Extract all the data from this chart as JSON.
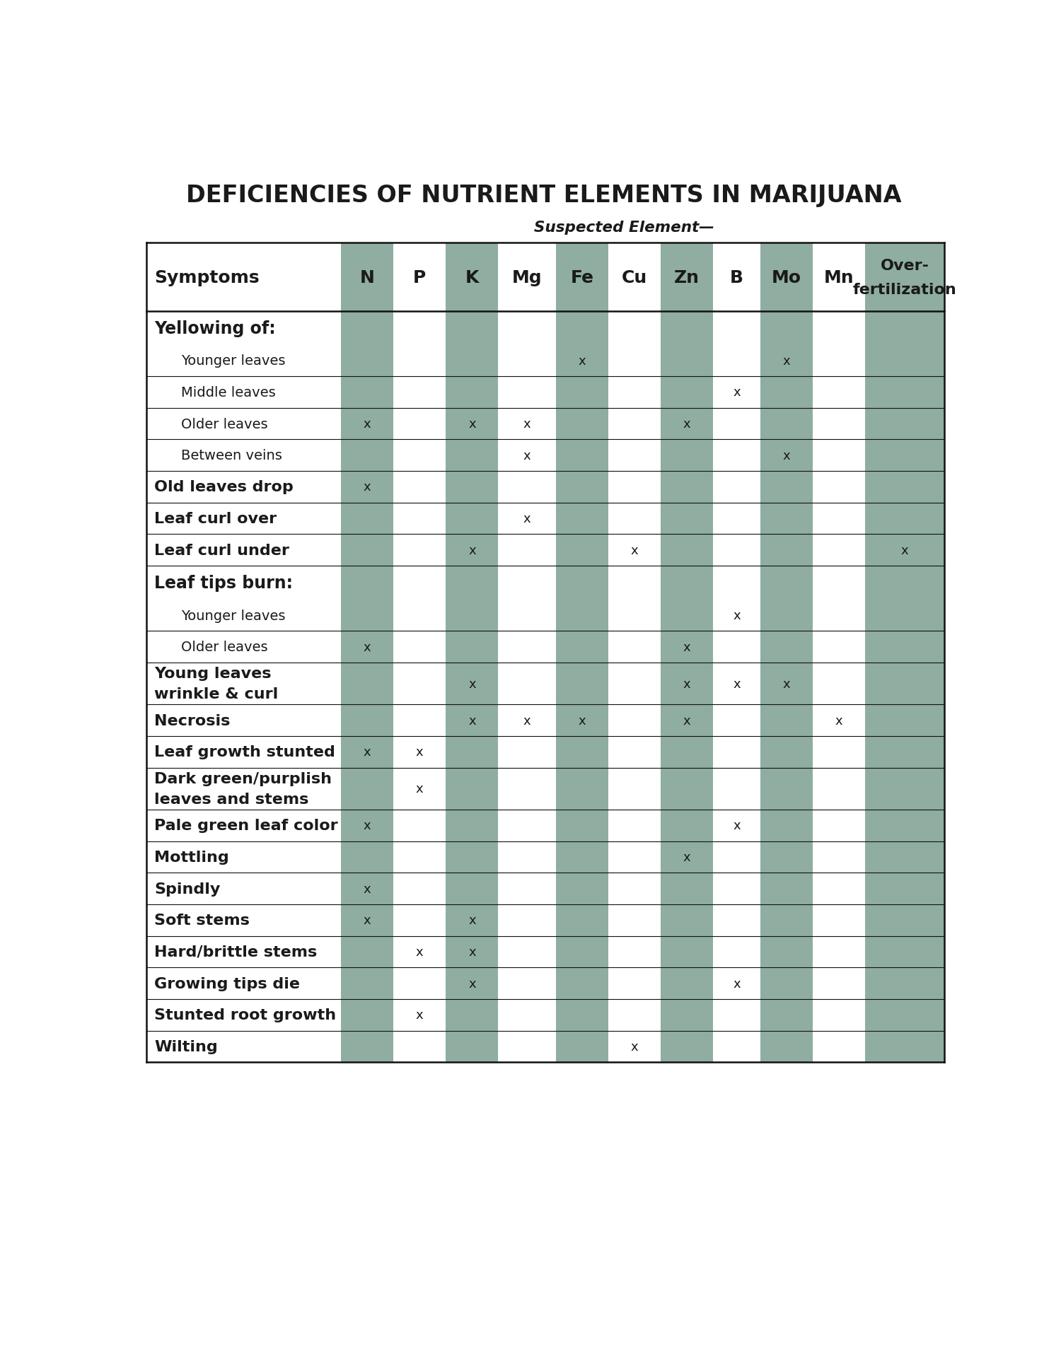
{
  "title": "DEFICIENCIES OF NUTRIENT ELEMENTS IN MARIJUANA",
  "subtitle": "Suspected Element—",
  "bg_color": "#ffffff",
  "stripe_color": "#8fada0",
  "text_color": "#1a1a1a",
  "columns": [
    "N",
    "P",
    "K",
    "Mg",
    "Fe",
    "Cu",
    "Zn",
    "B",
    "Mo",
    "Mn",
    "Over-\nfertilization"
  ],
  "striped_cols": [
    0,
    2,
    4,
    6,
    8,
    10
  ],
  "col_widths_rel": [
    1,
    1,
    1,
    1.1,
    1,
    1,
    1,
    0.9,
    1,
    1,
    1.5
  ],
  "rows": [
    {
      "label": "Yellowing of:",
      "indent": 0,
      "header": true,
      "line_below": false,
      "marks": [
        0,
        0,
        0,
        0,
        0,
        0,
        0,
        0,
        0,
        0,
        0
      ]
    },
    {
      "label": "Younger leaves",
      "indent": 1,
      "header": false,
      "line_below": true,
      "marks": [
        0,
        0,
        0,
        0,
        1,
        0,
        0,
        0,
        1,
        0,
        0
      ]
    },
    {
      "label": "Middle leaves",
      "indent": 1,
      "header": false,
      "line_below": true,
      "marks": [
        0,
        0,
        0,
        0,
        0,
        0,
        0,
        1,
        0,
        0,
        0
      ]
    },
    {
      "label": "Older leaves",
      "indent": 1,
      "header": false,
      "line_below": true,
      "marks": [
        1,
        0,
        1,
        1,
        0,
        0,
        1,
        0,
        0,
        0,
        0
      ]
    },
    {
      "label": "Between veins",
      "indent": 1,
      "header": false,
      "line_below": true,
      "marks": [
        0,
        0,
        0,
        1,
        0,
        0,
        0,
        0,
        1,
        0,
        0
      ]
    },
    {
      "label": "Old leaves drop",
      "indent": 0,
      "header": false,
      "line_below": true,
      "marks": [
        1,
        0,
        0,
        0,
        0,
        0,
        0,
        0,
        0,
        0,
        0
      ]
    },
    {
      "label": "Leaf curl over",
      "indent": 0,
      "header": false,
      "line_below": true,
      "marks": [
        0,
        0,
        0,
        1,
        0,
        0,
        0,
        0,
        0,
        0,
        0
      ]
    },
    {
      "label": "Leaf curl under",
      "indent": 0,
      "header": false,
      "line_below": true,
      "marks": [
        0,
        0,
        1,
        0,
        0,
        1,
        0,
        0,
        0,
        0,
        1
      ]
    },
    {
      "label": "Leaf tips burn:",
      "indent": 0,
      "header": true,
      "line_below": false,
      "marks": [
        0,
        0,
        0,
        0,
        0,
        0,
        0,
        0,
        0,
        0,
        0
      ]
    },
    {
      "label": "Younger leaves",
      "indent": 1,
      "header": false,
      "line_below": true,
      "marks": [
        0,
        0,
        0,
        0,
        0,
        0,
        0,
        1,
        0,
        0,
        0
      ]
    },
    {
      "label": "Older leaves",
      "indent": 1,
      "header": false,
      "line_below": true,
      "marks": [
        1,
        0,
        0,
        0,
        0,
        0,
        1,
        0,
        0,
        0,
        0
      ]
    },
    {
      "label": "Young leaves\nwrinkle & curl",
      "indent": 0,
      "header": false,
      "line_below": true,
      "marks": [
        0,
        0,
        1,
        0,
        0,
        0,
        1,
        1,
        1,
        0,
        0
      ]
    },
    {
      "label": "Necrosis",
      "indent": 0,
      "header": false,
      "line_below": true,
      "marks": [
        0,
        0,
        1,
        1,
        1,
        0,
        1,
        0,
        0,
        1,
        0
      ]
    },
    {
      "label": "Leaf growth stunted",
      "indent": 0,
      "header": false,
      "line_below": true,
      "marks": [
        1,
        1,
        0,
        0,
        0,
        0,
        0,
        0,
        0,
        0,
        0
      ]
    },
    {
      "label": "Dark green/purplish\nleaves and stems",
      "indent": 0,
      "header": false,
      "line_below": true,
      "marks": [
        0,
        1,
        0,
        0,
        0,
        0,
        0,
        0,
        0,
        0,
        0
      ]
    },
    {
      "label": "Pale green leaf color",
      "indent": 0,
      "header": false,
      "line_below": true,
      "marks": [
        1,
        0,
        0,
        0,
        0,
        0,
        0,
        1,
        0,
        0,
        0
      ]
    },
    {
      "label": "Mottling",
      "indent": 0,
      "header": false,
      "line_below": true,
      "marks": [
        0,
        0,
        0,
        0,
        0,
        0,
        1,
        0,
        0,
        0,
        0
      ]
    },
    {
      "label": "Spindly",
      "indent": 0,
      "header": false,
      "line_below": true,
      "marks": [
        1,
        0,
        0,
        0,
        0,
        0,
        0,
        0,
        0,
        0,
        0
      ]
    },
    {
      "label": "Soft stems",
      "indent": 0,
      "header": false,
      "line_below": true,
      "marks": [
        1,
        0,
        1,
        0,
        0,
        0,
        0,
        0,
        0,
        0,
        0
      ]
    },
    {
      "label": "Hard/brittle stems",
      "indent": 0,
      "header": false,
      "line_below": true,
      "marks": [
        0,
        1,
        1,
        0,
        0,
        0,
        0,
        0,
        0,
        0,
        0
      ]
    },
    {
      "label": "Growing tips die",
      "indent": 0,
      "header": false,
      "line_below": true,
      "marks": [
        0,
        0,
        1,
        0,
        0,
        0,
        0,
        1,
        0,
        0,
        0
      ]
    },
    {
      "label": "Stunted root growth",
      "indent": 0,
      "header": false,
      "line_below": true,
      "marks": [
        0,
        1,
        0,
        0,
        0,
        0,
        0,
        0,
        0,
        0,
        0
      ]
    },
    {
      "label": "Wilting",
      "indent": 0,
      "header": false,
      "line_below": true,
      "marks": [
        0,
        0,
        0,
        0,
        0,
        1,
        0,
        0,
        0,
        0,
        0
      ]
    }
  ]
}
